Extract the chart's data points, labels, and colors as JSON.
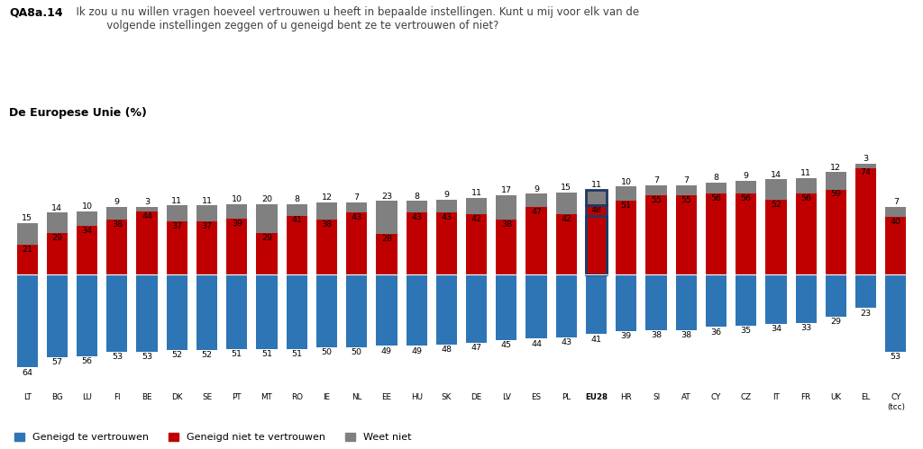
{
  "title_bold": "QA8a.14",
  "title_rest": "  Ik zou u nu willen vragen hoeveel vertrouwen u heeft in bepaalde instellingen. Kunt u mij voor elk van de\n           volgende instellingen zeggen of u geneigd bent ze te vertrouwen of niet?",
  "subtitle": "De Europese Unie (%)",
  "countries": [
    "LT",
    "BG",
    "LU",
    "FI",
    "BE",
    "DK",
    "SE",
    "PT",
    "MT",
    "RO",
    "IE",
    "NL",
    "EE",
    "HU",
    "SK",
    "DE",
    "LV",
    "ES",
    "PL",
    "EU28",
    "HR",
    "SI",
    "AT",
    "CY",
    "CZ",
    "IT",
    "FR",
    "UK",
    "EL",
    "CY\n(tcc)"
  ],
  "trust": [
    64,
    57,
    56,
    53,
    53,
    52,
    52,
    51,
    51,
    51,
    50,
    50,
    49,
    49,
    48,
    47,
    45,
    44,
    43,
    41,
    39,
    38,
    38,
    36,
    35,
    34,
    33,
    29,
    23,
    53
  ],
  "no_trust": [
    21,
    29,
    34,
    38,
    44,
    37,
    37,
    39,
    29,
    41,
    38,
    43,
    28,
    43,
    43,
    42,
    38,
    47,
    42,
    48,
    51,
    55,
    55,
    56,
    56,
    52,
    56,
    59,
    74,
    40
  ],
  "dont_know": [
    15,
    14,
    10,
    9,
    3,
    11,
    11,
    10,
    20,
    8,
    12,
    7,
    23,
    8,
    9,
    11,
    17,
    9,
    15,
    11,
    10,
    7,
    7,
    8,
    9,
    14,
    11,
    12,
    3,
    7
  ],
  "eu28_index": 19,
  "color_trust": "#2E75B6",
  "color_no_trust": "#C00000",
  "color_dont_know": "#808080",
  "color_eu28_border": "#203864",
  "bg_color": "#FFFFFF",
  "legend_trust": "Geneigd te vertrouwen",
  "legend_no_trust": "Geneigd niet te vertrouwen",
  "legend_dk": "Weet niet"
}
